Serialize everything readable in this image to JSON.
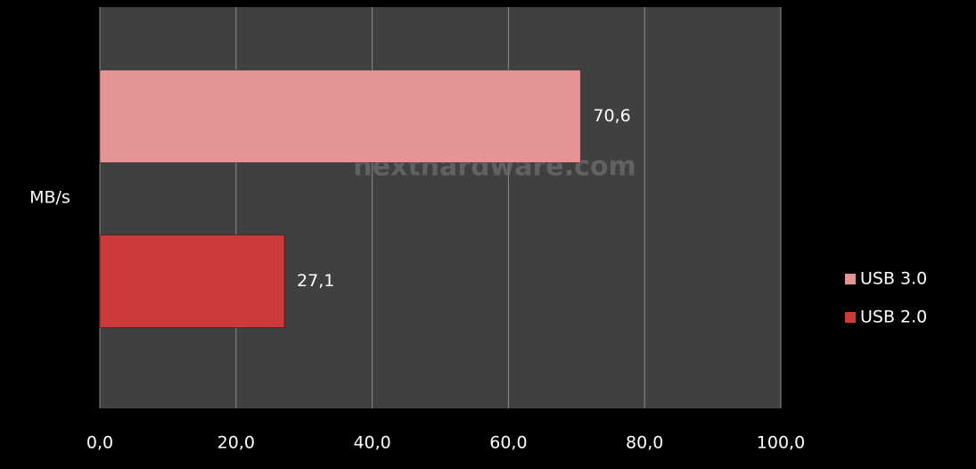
{
  "chart_data": {
    "type": "hbar",
    "categories": [
      "MB/s"
    ],
    "series": [
      {
        "name": "USB 3.0",
        "color": "#e49494",
        "values": [
          70.6
        ],
        "value_labels": [
          "70,6"
        ]
      },
      {
        "name": "USB 2.0",
        "color": "#cc3a3a",
        "values": [
          27.1
        ],
        "value_labels": [
          "27,1"
        ]
      }
    ],
    "xlim": [
      0,
      100
    ],
    "xticks": [
      {
        "value": 0,
        "label": "0,0"
      },
      {
        "value": 20,
        "label": "20,0"
      },
      {
        "value": 40,
        "label": "40,0"
      },
      {
        "value": 60,
        "label": "60,0"
      },
      {
        "value": 80,
        "label": "80,0"
      },
      {
        "value": 100,
        "label": "100,0"
      }
    ],
    "grid": true,
    "legend": "right",
    "watermark": "nexthardware.com"
  }
}
